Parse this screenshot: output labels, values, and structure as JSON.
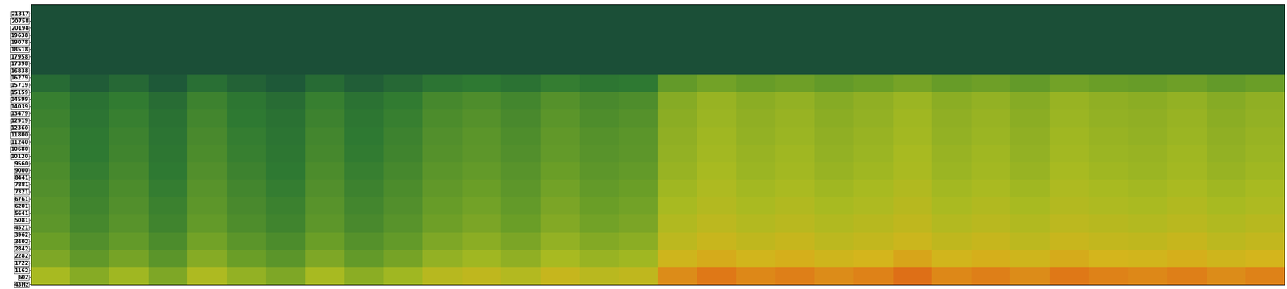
{
  "chart_data": {
    "type": "heatmap",
    "ylim": [
      0,
      22050
    ],
    "yticks": [
      {
        "value": 43,
        "label": "43Hz"
      },
      602,
      1162,
      1722,
      2282,
      2842,
      3402,
      3962,
      4521,
      5081,
      5641,
      6201,
      6761,
      7321,
      7881,
      8441,
      9000,
      9560,
      10120,
      10680,
      11240,
      11800,
      12360,
      12919,
      13479,
      14039,
      14599,
      15159,
      15719,
      16279,
      16838,
      17398,
      17958,
      18518,
      19078,
      19638,
      20198,
      20758,
      21317
    ],
    "tick_labels": "y",
    "clim": [
      0,
      100
    ],
    "cells": [
      [
        65,
        57,
        63,
        55,
        67,
        60,
        55,
        65,
        58,
        63,
        70,
        73,
        69,
        75,
        71,
        73,
        88,
        92,
        89,
        91,
        88,
        90,
        93,
        89,
        91,
        88,
        92,
        90,
        89,
        91,
        88,
        90
      ],
      [
        55,
        47,
        53,
        45,
        57,
        50,
        45,
        55,
        48,
        53,
        60,
        63,
        59,
        65,
        61,
        63,
        78,
        82,
        79,
        81,
        78,
        80,
        83,
        79,
        81,
        78,
        82,
        80,
        79,
        81,
        78,
        80
      ],
      [
        50,
        42,
        48,
        40,
        52,
        45,
        40,
        50,
        43,
        48,
        55,
        58,
        54,
        60,
        56,
        58,
        72,
        76,
        73,
        75,
        72,
        74,
        77,
        73,
        75,
        72,
        76,
        74,
        73,
        75,
        72,
        74
      ],
      [
        46,
        38,
        44,
        36,
        48,
        41,
        36,
        46,
        39,
        44,
        51,
        54,
        50,
        56,
        52,
        54,
        68,
        72,
        69,
        71,
        68,
        70,
        73,
        69,
        71,
        68,
        72,
        70,
        69,
        71,
        68,
        70
      ],
      [
        44,
        36,
        42,
        34,
        46,
        39,
        34,
        44,
        37,
        42,
        49,
        52,
        48,
        54,
        50,
        52,
        65,
        69,
        66,
        68,
        65,
        67,
        70,
        66,
        68,
        65,
        69,
        67,
        66,
        68,
        65,
        67
      ],
      [
        42,
        34,
        40,
        32,
        44,
        37,
        32,
        42,
        35,
        40,
        47,
        50,
        46,
        52,
        48,
        50,
        63,
        67,
        64,
        66,
        63,
        65,
        68,
        64,
        66,
        63,
        67,
        65,
        64,
        66,
        63,
        65
      ],
      [
        40,
        32,
        38,
        30,
        42,
        35,
        30,
        40,
        33,
        38,
        45,
        48,
        44,
        50,
        46,
        48,
        61,
        65,
        62,
        64,
        61,
        63,
        66,
        62,
        64,
        61,
        65,
        63,
        62,
        64,
        61,
        63
      ],
      [
        38,
        30,
        36,
        28,
        40,
        33,
        28,
        38,
        31,
        36,
        43,
        46,
        42,
        48,
        44,
        46,
        60,
        64,
        61,
        63,
        60,
        62,
        65,
        61,
        63,
        60,
        64,
        62,
        61,
        63,
        60,
        62
      ],
      [
        37,
        29,
        35,
        27,
        39,
        32,
        27,
        37,
        30,
        35,
        42,
        45,
        41,
        47,
        43,
        45,
        59,
        63,
        60,
        62,
        59,
        61,
        64,
        60,
        62,
        59,
        63,
        61,
        60,
        62,
        59,
        61
      ],
      [
        35,
        27,
        33,
        25,
        37,
        30,
        25,
        35,
        28,
        33,
        40,
        43,
        39,
        45,
        41,
        43,
        58,
        62,
        59,
        61,
        58,
        60,
        63,
        59,
        61,
        58,
        62,
        60,
        59,
        61,
        58,
        60
      ],
      [
        33,
        25,
        31,
        23,
        35,
        28,
        23,
        33,
        26,
        31,
        38,
        41,
        37,
        43,
        39,
        41,
        57,
        61,
        58,
        60,
        57,
        59,
        62,
        58,
        60,
        57,
        61,
        59,
        58,
        60,
        57,
        59
      ],
      [
        22,
        14,
        20,
        12,
        24,
        17,
        12,
        22,
        15,
        20,
        27,
        30,
        26,
        32,
        28,
        30,
        48,
        52,
        49,
        51,
        48,
        50,
        53,
        49,
        51,
        48,
        52,
        50,
        49,
        51,
        48,
        50
      ],
      [
        5,
        5,
        5,
        5,
        5,
        5,
        5,
        5,
        5,
        5,
        5,
        5,
        5,
        5,
        5,
        5,
        5,
        5,
        5,
        5,
        5,
        5,
        5,
        5,
        5,
        5,
        5,
        5,
        5,
        5,
        5,
        5
      ],
      [
        5,
        5,
        5,
        5,
        5,
        5,
        5,
        5,
        5,
        5,
        5,
        5,
        5,
        5,
        5,
        5,
        5,
        5,
        5,
        5,
        5,
        5,
        5,
        5,
        5,
        5,
        5,
        5,
        5,
        5,
        5,
        5
      ],
      [
        5,
        5,
        5,
        5,
        5,
        5,
        5,
        5,
        5,
        5,
        5,
        5,
        5,
        5,
        5,
        5,
        5,
        5,
        5,
        5,
        5,
        5,
        5,
        5,
        5,
        5,
        5,
        5,
        5,
        5,
        5,
        5
      ],
      [
        5,
        5,
        5,
        5,
        5,
        5,
        5,
        5,
        5,
        5,
        5,
        5,
        5,
        5,
        5,
        5,
        5,
        5,
        5,
        5,
        5,
        5,
        5,
        5,
        5,
        5,
        5,
        5,
        5,
        5,
        5,
        5
      ]
    ]
  }
}
